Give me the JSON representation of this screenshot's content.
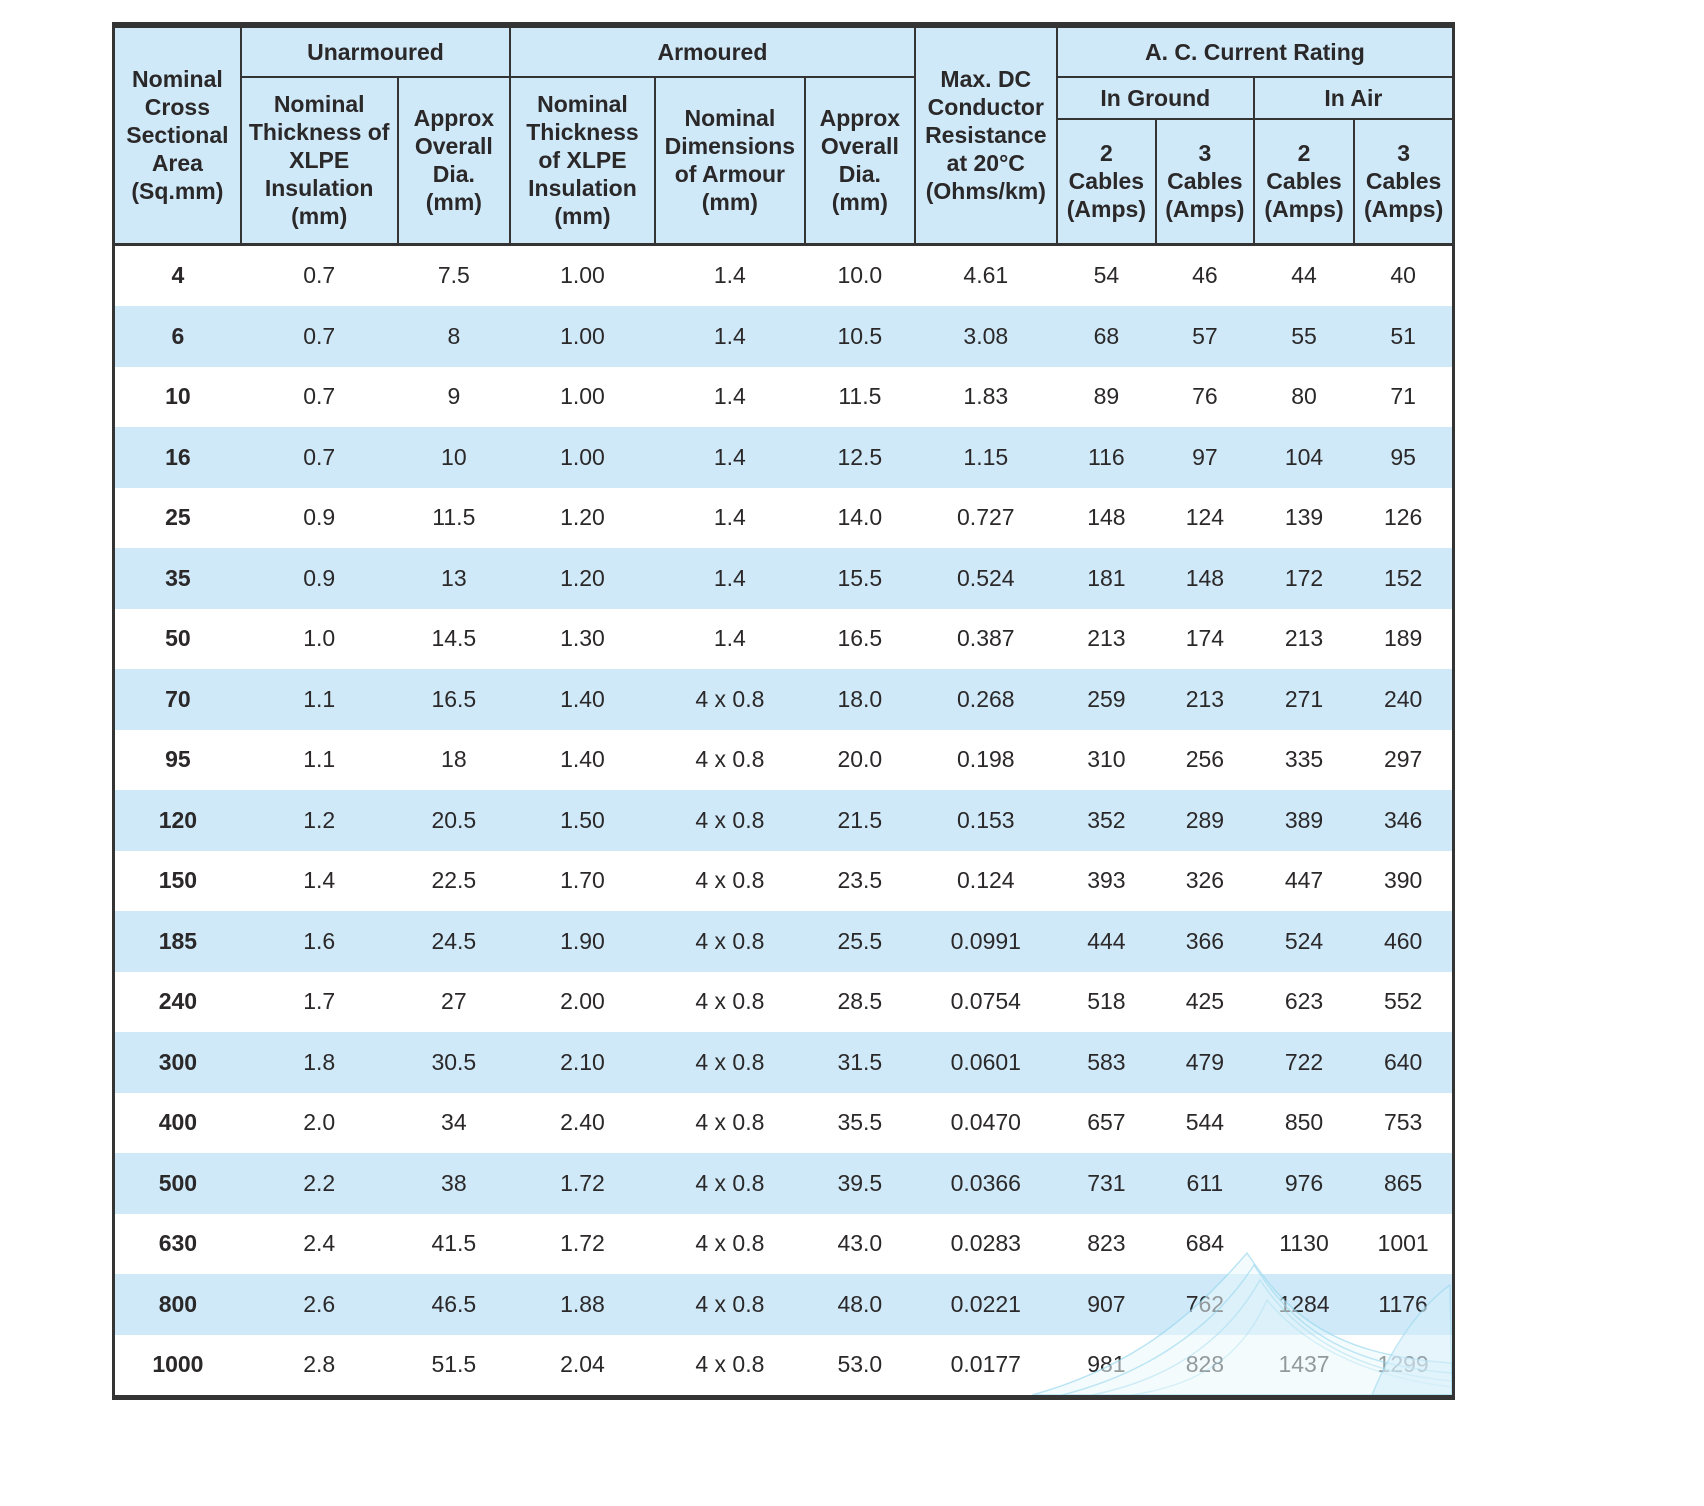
{
  "page": {
    "background": "#ffffff"
  },
  "table": {
    "title": "XLPE insulated cable specification table",
    "colors": {
      "header_bg": "#cfe9f8",
      "stripe_bg": "#cfe9f8",
      "row_bg": "#ffffff",
      "border": "#343434",
      "text": "#2b2829",
      "swirl_accent": "#8ed4ec"
    },
    "columns": {
      "area": "Nominal Cross Sectional Area (Sq.mm)",
      "unarmoured": {
        "label": "Unarmoured",
        "sub": [
          "Nominal Thickness of XLPE Insulation (mm)",
          "Approx Overall Dia. (mm)"
        ]
      },
      "armoured": {
        "label": "Armoured",
        "sub": [
          "Nominal Thickness of XLPE Insulation (mm)",
          "Nominal Dimensions of Armour (mm)",
          "Approx Overall Dia. (mm)"
        ]
      },
      "dc_resistance": "Max. DC Conductor Resistance at 20°C (Ohms/km)",
      "ac_rating": {
        "label": "A. C. Current Rating",
        "groups": [
          {
            "label": "In Ground",
            "sub": [
              "2 Cables (Amps)",
              "3 Cables (Amps)"
            ]
          },
          {
            "label": "In Air",
            "sub": [
              "2 Cables (Amps)",
              "3 Cables (Amps)"
            ]
          }
        ]
      }
    },
    "rows": [
      [
        "4",
        "0.7",
        "7.5",
        "1.00",
        "1.4",
        "10.0",
        "4.61",
        "54",
        "46",
        "44",
        "40"
      ],
      [
        "6",
        "0.7",
        "8",
        "1.00",
        "1.4",
        "10.5",
        "3.08",
        "68",
        "57",
        "55",
        "51"
      ],
      [
        "10",
        "0.7",
        "9",
        "1.00",
        "1.4",
        "11.5",
        "1.83",
        "89",
        "76",
        "80",
        "71"
      ],
      [
        "16",
        "0.7",
        "10",
        "1.00",
        "1.4",
        "12.5",
        "1.15",
        "116",
        "97",
        "104",
        "95"
      ],
      [
        "25",
        "0.9",
        "11.5",
        "1.20",
        "1.4",
        "14.0",
        "0.727",
        "148",
        "124",
        "139",
        "126"
      ],
      [
        "35",
        "0.9",
        "13",
        "1.20",
        "1.4",
        "15.5",
        "0.524",
        "181",
        "148",
        "172",
        "152"
      ],
      [
        "50",
        "1.0",
        "14.5",
        "1.30",
        "1.4",
        "16.5",
        "0.387",
        "213",
        "174",
        "213",
        "189"
      ],
      [
        "70",
        "1.1",
        "16.5",
        "1.40",
        "4 x 0.8",
        "18.0",
        "0.268",
        "259",
        "213",
        "271",
        "240"
      ],
      [
        "95",
        "1.1",
        "18",
        "1.40",
        "4 x 0.8",
        "20.0",
        "0.198",
        "310",
        "256",
        "335",
        "297"
      ],
      [
        "120",
        "1.2",
        "20.5",
        "1.50",
        "4 x 0.8",
        "21.5",
        "0.153",
        "352",
        "289",
        "389",
        "346"
      ],
      [
        "150",
        "1.4",
        "22.5",
        "1.70",
        "4 x 0.8",
        "23.5",
        "0.124",
        "393",
        "326",
        "447",
        "390"
      ],
      [
        "185",
        "1.6",
        "24.5",
        "1.90",
        "4 x 0.8",
        "25.5",
        "0.0991",
        "444",
        "366",
        "524",
        "460"
      ],
      [
        "240",
        "1.7",
        "27",
        "2.00",
        "4 x 0.8",
        "28.5",
        "0.0754",
        "518",
        "425",
        "623",
        "552"
      ],
      [
        "300",
        "1.8",
        "30.5",
        "2.10",
        "4 x 0.8",
        "31.5",
        "0.0601",
        "583",
        "479",
        "722",
        "640"
      ],
      [
        "400",
        "2.0",
        "34",
        "2.40",
        "4 x 0.8",
        "35.5",
        "0.0470",
        "657",
        "544",
        "850",
        "753"
      ],
      [
        "500",
        "2.2",
        "38",
        "1.72",
        "4 x 0.8",
        "39.5",
        "0.0366",
        "731",
        "611",
        "976",
        "865"
      ],
      [
        "630",
        "2.4",
        "41.5",
        "1.72",
        "4 x 0.8",
        "43.0",
        "0.0283",
        "823",
        "684",
        "1130",
        "1001"
      ],
      [
        "800",
        "2.6",
        "46.5",
        "1.88",
        "4 x 0.8",
        "48.0",
        "0.0221",
        "907",
        "762",
        "1284",
        "1176"
      ],
      [
        "1000",
        "2.8",
        "51.5",
        "2.04",
        "4 x 0.8",
        "53.0",
        "0.0177",
        "981",
        "828",
        "1437",
        "1299"
      ]
    ]
  }
}
